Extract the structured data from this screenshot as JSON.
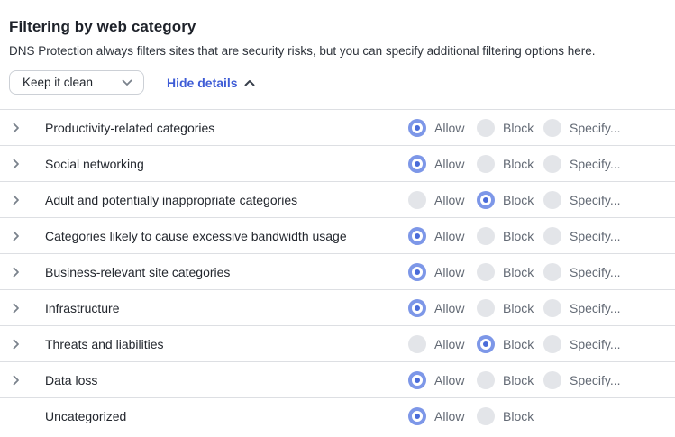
{
  "header": {
    "title": "Filtering by web category",
    "subtitle": "DNS Protection always filters sites that are security risks, but you can specify additional filtering options here."
  },
  "controls": {
    "preset_dropdown": {
      "value": "Keep it clean",
      "icon": "chevron-down-icon"
    },
    "details_toggle": {
      "label": "Hide details",
      "icon": "chevron-up-icon"
    }
  },
  "option_labels": {
    "allow": "Allow",
    "block": "Block",
    "specify": "Specify..."
  },
  "categories": [
    {
      "label": "Productivity-related categories",
      "selected": "allow",
      "expandable": true,
      "has_specify": true
    },
    {
      "label": "Social networking",
      "selected": "allow",
      "expandable": true,
      "has_specify": true
    },
    {
      "label": "Adult and potentially inappropriate categories",
      "selected": "block",
      "expandable": true,
      "has_specify": true
    },
    {
      "label": "Categories likely to cause excessive bandwidth usage",
      "selected": "allow",
      "expandable": true,
      "has_specify": true
    },
    {
      "label": "Business-relevant site categories",
      "selected": "allow",
      "expandable": true,
      "has_specify": true
    },
    {
      "label": "Infrastructure",
      "selected": "allow",
      "expandable": true,
      "has_specify": true
    },
    {
      "label": "Threats and liabilities",
      "selected": "block",
      "expandable": true,
      "has_specify": true
    },
    {
      "label": "Data loss",
      "selected": "allow",
      "expandable": true,
      "has_specify": true
    },
    {
      "label": "Uncategorized",
      "selected": "allow",
      "expandable": false,
      "has_specify": false
    }
  ],
  "colors": {
    "link_blue": "#3e5cd6",
    "radio_selected_outer": "#7d97e8",
    "radio_selected_dot": "#4a6cd9",
    "radio_unselected": "#e3e5e9",
    "separator": "#dddfe3",
    "title_text": "#1d2129",
    "option_label_text": "#636a75"
  }
}
